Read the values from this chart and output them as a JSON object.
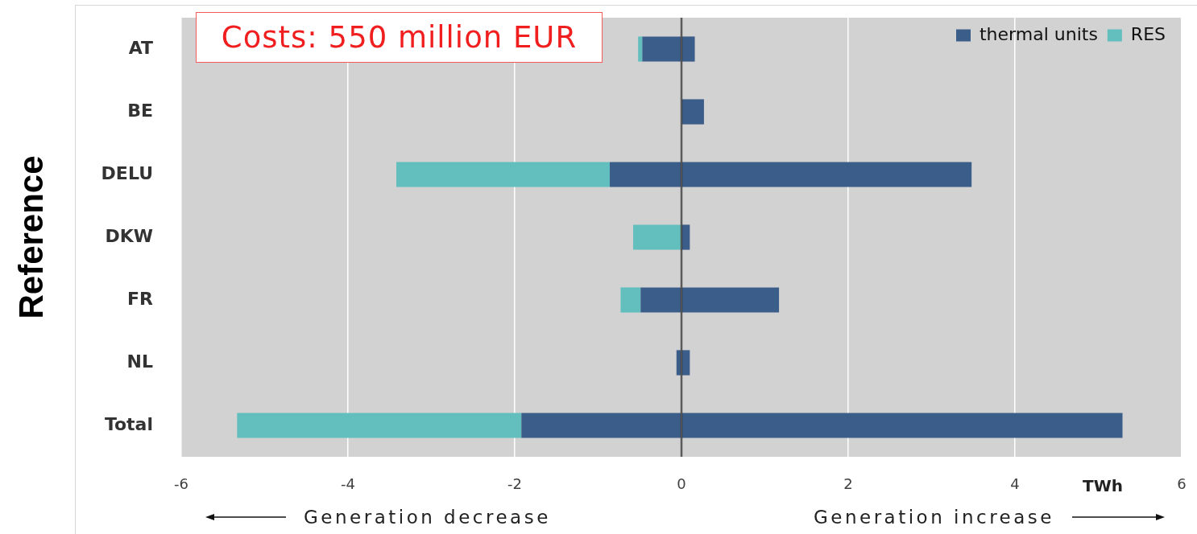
{
  "chart_data": {
    "type": "bar",
    "orientation": "horizontal",
    "stacked": true,
    "categories": [
      "AT",
      "BE",
      "DELU",
      "DKW",
      "FR",
      "NL",
      "Total"
    ],
    "series": [
      {
        "name": "thermal units",
        "color": "#3b5d8a",
        "values": [
          0.16,
          0.27,
          3.48,
          0.1,
          1.17,
          0.1,
          5.29
        ]
      },
      {
        "color": "#3b5d8a",
        "values": [
          -0.47,
          null,
          -0.86,
          null,
          -0.49,
          -0.06,
          -1.92
        ]
      },
      {
        "name": "RES",
        "color": "#63bebe",
        "values": [
          -0.05,
          null,
          -2.56,
          -0.58,
          -0.24,
          null,
          -3.41
        ]
      }
    ],
    "xlim": [
      -6,
      6
    ],
    "xticks": [
      -6,
      -4,
      -2,
      0,
      2,
      4,
      6
    ],
    "xlabel": "TWh",
    "ylabel": "Reference",
    "annotations": [
      "Costs: 550 million EUR",
      "Generation decrease",
      "Generation increase"
    ],
    "grid": "x",
    "legend": "top right"
  }
}
